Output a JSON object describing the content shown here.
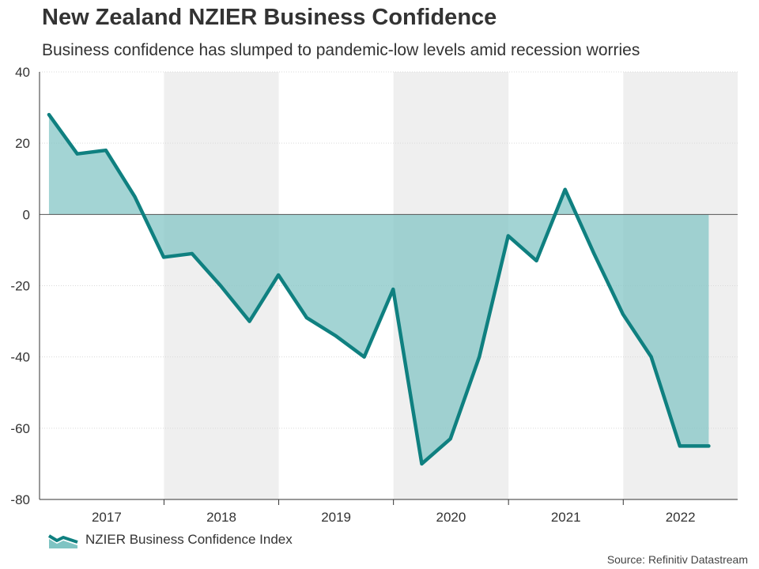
{
  "header": {
    "title": "New Zealand NZIER Business Confidence",
    "subtitle": "Business confidence has slumped to pandemic-low levels amid recession worries"
  },
  "footer": {
    "source": "Source: Refinitiv Datastream"
  },
  "colors": {
    "line": "#0f8080",
    "fill": "#7fc4c3",
    "band": "#efefef"
  },
  "chart_data": {
    "type": "area",
    "title": "New Zealand NZIER Business Confidence",
    "subtitle": "Business confidence has slumped to pandemic-low levels amid recession worries",
    "xlabel": "",
    "ylabel": "",
    "ylim": [
      -80,
      40
    ],
    "yticks": [
      40,
      20,
      0,
      -20,
      -40,
      -60,
      -80
    ],
    "ytick_labels": [
      "40",
      "20",
      "0",
      "-20",
      "-40",
      "-60",
      "-80"
    ],
    "x_range": [
      "2016-12-01",
      "2022-12-31"
    ],
    "year_labels": [
      "2017",
      "2018",
      "2019",
      "2020",
      "2021",
      "2022"
    ],
    "shaded_years": [
      "2018",
      "2020",
      "2022"
    ],
    "grid": true,
    "legend_position": "bottom-left",
    "series": [
      {
        "name": "NZIER Business Confidence Index",
        "x": [
          "2016-12-31",
          "2017-03-31",
          "2017-06-30",
          "2017-09-30",
          "2017-12-31",
          "2018-03-31",
          "2018-06-30",
          "2018-09-30",
          "2018-12-31",
          "2019-03-31",
          "2019-06-30",
          "2019-09-30",
          "2019-12-31",
          "2020-03-31",
          "2020-06-30",
          "2020-09-30",
          "2020-12-31",
          "2021-03-31",
          "2021-06-30",
          "2021-09-30",
          "2021-12-31",
          "2022-03-31",
          "2022-06-30",
          "2022-09-30"
        ],
        "values": [
          28,
          17,
          18,
          5,
          -12,
          -11,
          -20,
          -30,
          -17,
          -29,
          -34,
          -40,
          -21,
          -70,
          -63,
          -40,
          -6,
          -13,
          7,
          -11,
          -28,
          -40,
          -65,
          -65
        ]
      }
    ]
  }
}
